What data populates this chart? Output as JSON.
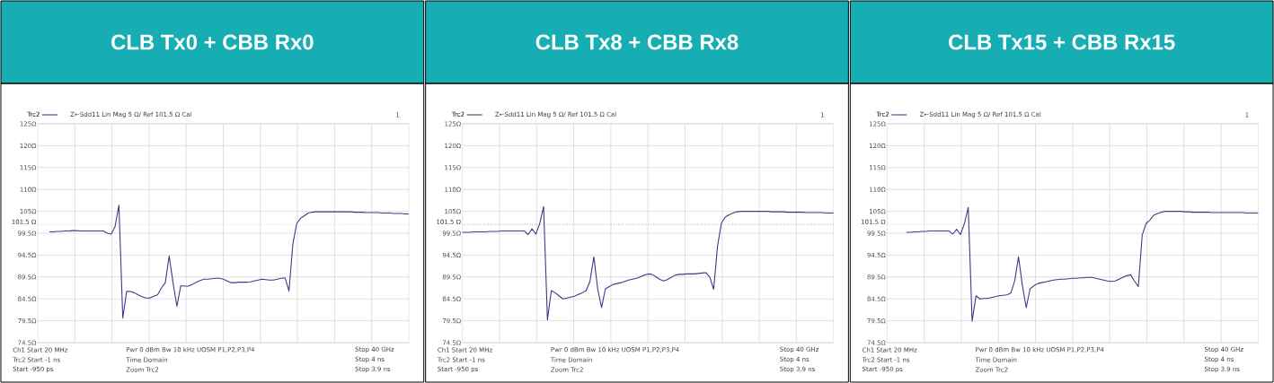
{
  "chart_data": [
    {
      "type": "line",
      "title": "CLB Tx0 + CBB Rx0",
      "categories": [
        null,
        null,
        null,
        null,
        null,
        null,
        null,
        null,
        null,
        null,
        null,
        null,
        null,
        null,
        null,
        null,
        null,
        null,
        null,
        null,
        null,
        null,
        null,
        null,
        null,
        null,
        null,
        null,
        null,
        null,
        null,
        null,
        null,
        null,
        null,
        null,
        null,
        null,
        null,
        null,
        null,
        null,
        null,
        null,
        null,
        null,
        null,
        null,
        null,
        null,
        null,
        null,
        null,
        null,
        null,
        null,
        null,
        null,
        null,
        null,
        null,
        null,
        null,
        null,
        null,
        null,
        null,
        null,
        null,
        null,
        null,
        null,
        null,
        null,
        null,
        null,
        null,
        null,
        null,
        null,
        null,
        null,
        null,
        null,
        null,
        null,
        null,
        null,
        null,
        null,
        null,
        null,
        null,
        null,
        null,
        null,
        null
      ],
      "series": [
        {
          "name": "Trc2",
          "color": "#3b3b8a",
          "values": [
            null,
            null,
            null,
            99.8,
            99.8,
            99.9,
            99.9,
            100.0,
            100.0,
            100.1,
            100.1,
            100.0,
            100.0,
            100.0,
            100.0,
            100.0,
            100.0,
            100.0,
            99.5,
            99.3,
            101.0,
            105.9,
            80.1,
            86.2,
            86.2,
            85.9,
            85.4,
            85.0,
            84.7,
            84.7,
            85.1,
            85.4,
            87.0,
            88.2,
            94.3,
            88.2,
            82.8,
            87.5,
            87.4,
            87.4,
            87.8,
            88.3,
            88.7,
            89.0,
            89.0,
            89.1,
            89.2,
            89.2,
            89.0,
            88.6,
            88.2,
            88.2,
            88.3,
            88.3,
            88.3,
            88.4,
            88.6,
            88.8,
            89.0,
            88.9,
            88.8,
            88.8,
            89.0,
            89.2,
            89.3,
            86.3,
            97.0,
            101.7,
            102.9,
            103.5,
            104.1,
            104.3,
            104.4,
            104.4,
            104.4,
            104.4,
            104.4,
            104.4,
            104.4,
            104.4,
            104.4,
            104.4,
            104.3,
            104.3,
            104.3,
            104.2,
            104.2,
            104.2,
            104.2,
            104.1,
            104.1,
            104.1,
            104.0,
            104.0,
            104.0,
            103.9,
            103.9
          ]
        }
      ],
      "ylim": [
        74.5,
        124.5
      ],
      "yticks": [
        {
          "value": 74.5,
          "label": "74.5Ω"
        },
        {
          "value": 79.5,
          "label": "79.5Ω"
        },
        {
          "value": 84.5,
          "label": "84.5Ω"
        },
        {
          "value": 89.5,
          "label": "89.5Ω"
        },
        {
          "value": 94.5,
          "label": "94.5Ω"
        },
        {
          "value": 99.5,
          "label": "99.5Ω"
        },
        {
          "value": 104.5,
          "label": "105Ω"
        },
        {
          "value": 109.5,
          "label": "110Ω"
        },
        {
          "value": 114.5,
          "label": "115Ω"
        },
        {
          "value": 119.5,
          "label": "120Ω"
        },
        {
          "value": 124.5,
          "label": "125Ω"
        }
      ],
      "tick_labels": "y",
      "grid": true,
      "legend": "top left",
      "line_style": "solid",
      "ref_lines": [
        {
          "axis": "y",
          "value": 101.5,
          "label": "101.5 Ω",
          "color": "#b0b0b0",
          "line_style": "dotted"
        }
      ],
      "annotations": [
        "Z←Sdd11 Lin Mag 5 Ω/ Ref 101.5 Ω Cal",
        "1",
        "Ch1 Start 20 MHz",
        "Pwr 0 dBm Bw 10 kHz UOSM P1,P2,P3,P4",
        "Stop 40 GHz",
        "Trc2 Start -1 ns",
        "Time Domain",
        "Stop 4 ns",
        "Start -950 ps",
        "Zoom Trc2",
        "Stop 3.9 ns"
      ]
    },
    {
      "type": "line",
      "title": "CLB Tx8 + CBB Rx8",
      "categories": [
        null,
        null,
        null,
        null,
        null,
        null,
        null,
        null,
        null,
        null,
        null,
        null,
        null,
        null,
        null,
        null,
        null,
        null,
        null,
        null,
        null,
        null,
        null,
        null,
        null,
        null,
        null,
        null,
        null,
        null,
        null,
        null,
        null,
        null,
        null,
        null,
        null,
        null,
        null,
        null,
        null,
        null,
        null,
        null,
        null,
        null,
        null,
        null,
        null,
        null,
        null,
        null,
        null,
        null,
        null,
        null,
        null,
        null,
        null,
        null,
        null,
        null,
        null,
        null,
        null,
        null,
        null,
        null,
        null,
        null,
        null,
        null,
        null,
        null,
        null,
        null,
        null,
        null,
        null,
        null,
        null,
        null,
        null,
        null,
        null,
        null,
        null,
        null,
        null,
        null,
        null,
        null,
        null,
        null,
        null,
        null,
        null
      ],
      "series": [
        {
          "name": "Trc2",
          "color": "#3b3b8a",
          "values": [
            99.7,
            99.7,
            99.7,
            99.8,
            99.8,
            99.8,
            99.8,
            99.9,
            99.9,
            99.9,
            100.0,
            100.0,
            100.0,
            100.0,
            100.0,
            100.0,
            100.0,
            99.2,
            100.5,
            99.3,
            101.7,
            105.6,
            79.7,
            86.4,
            85.9,
            85.2,
            84.5,
            84.7,
            84.9,
            85.1,
            85.5,
            85.9,
            86.4,
            88.5,
            94.1,
            86.8,
            82.5,
            86.8,
            87.3,
            87.8,
            88.0,
            88.2,
            88.5,
            88.8,
            89.0,
            89.2,
            89.5,
            89.9,
            90.2,
            90.1,
            89.6,
            89.0,
            88.6,
            88.9,
            89.4,
            89.9,
            90.1,
            90.1,
            90.2,
            90.2,
            90.2,
            90.3,
            90.4,
            90.5,
            89.5,
            86.7,
            96.5,
            101.8,
            103.2,
            103.7,
            104.1,
            104.4,
            104.5,
            104.5,
            104.5,
            104.5,
            104.5,
            104.5,
            104.5,
            104.5,
            104.4,
            104.4,
            104.4,
            104.4,
            104.3,
            104.3,
            104.3,
            104.3,
            104.3,
            104.2,
            104.2,
            104.2,
            104.2,
            104.2,
            104.1,
            104.1,
            104.1
          ]
        }
      ],
      "ylim": [
        74.5,
        124.5
      ],
      "yticks": [
        {
          "value": 74.5,
          "label": "74.5Ω"
        },
        {
          "value": 79.5,
          "label": "79.5Ω"
        },
        {
          "value": 84.5,
          "label": "84.5Ω"
        },
        {
          "value": 89.5,
          "label": "89.5Ω"
        },
        {
          "value": 94.5,
          "label": "94.5Ω"
        },
        {
          "value": 99.5,
          "label": "99.5Ω"
        },
        {
          "value": 104.5,
          "label": "105Ω"
        },
        {
          "value": 109.5,
          "label": "110Ω"
        },
        {
          "value": 114.5,
          "label": "115Ω"
        },
        {
          "value": 119.5,
          "label": "120Ω"
        },
        {
          "value": 124.5,
          "label": "125Ω"
        }
      ],
      "tick_labels": "y",
      "grid": true,
      "legend": "top left",
      "line_style": "solid",
      "ref_lines": [
        {
          "axis": "y",
          "value": 101.5,
          "label": "101.5 Ω",
          "color": "#303030",
          "line_style": "dotted"
        }
      ],
      "annotations": [
        "Z←Sdd11 Lin Mag 5 Ω/ Ref 101.5 Ω Cal",
        "1",
        "Ch1 Start 20 MHz",
        "Pwr 0 dBm Bw 10 kHz UOSM P1,P2,P3,P4",
        "Stop 40 GHz",
        "Trc2 Start -1 ns",
        "Time Domain",
        "Stop 4 ns",
        "Start -950 ps",
        "Zoom Trc2",
        "Stop 3.9 ns"
      ]
    },
    {
      "type": "line",
      "title": "CLB Tx15 + CBB Rx15",
      "categories": [
        null,
        null,
        null,
        null,
        null,
        null,
        null,
        null,
        null,
        null,
        null,
        null,
        null,
        null,
        null,
        null,
        null,
        null,
        null,
        null,
        null,
        null,
        null,
        null,
        null,
        null,
        null,
        null,
        null,
        null,
        null,
        null,
        null,
        null,
        null,
        null,
        null,
        null,
        null,
        null,
        null,
        null,
        null,
        null,
        null,
        null,
        null,
        null,
        null,
        null,
        null,
        null,
        null,
        null,
        null,
        null,
        null,
        null,
        null,
        null,
        null,
        null,
        null,
        null,
        null,
        null,
        null,
        null,
        null,
        null,
        null,
        null,
        null,
        null,
        null,
        null,
        null,
        null,
        null,
        null,
        null,
        null,
        null,
        null,
        null,
        null,
        null,
        null,
        null,
        null,
        null,
        null,
        null,
        null,
        null,
        null,
        null
      ],
      "series": [
        {
          "name": "Trc2",
          "color": "#3b3b8a",
          "values": [
            null,
            null,
            null,
            null,
            null,
            99.7,
            99.7,
            99.8,
            99.8,
            99.9,
            99.9,
            100.0,
            100.0,
            100.0,
            100.0,
            100.0,
            100.0,
            99.3,
            100.4,
            99.2,
            101.7,
            105.4,
            79.4,
            85.2,
            84.5,
            84.6,
            84.6,
            84.8,
            85.0,
            85.2,
            85.3,
            85.4,
            85.8,
            88.5,
            94.1,
            87.6,
            82.5,
            86.8,
            87.5,
            88.0,
            88.2,
            88.4,
            88.6,
            88.8,
            88.9,
            89.0,
            89.0,
            89.1,
            89.2,
            89.2,
            89.3,
            89.3,
            89.4,
            89.4,
            89.2,
            89.0,
            88.8,
            88.6,
            88.5,
            88.6,
            89.0,
            89.4,
            89.8,
            90.0,
            88.6,
            87.3,
            99.0,
            101.7,
            102.5,
            103.6,
            104.0,
            104.3,
            104.5,
            104.5,
            104.5,
            104.5,
            104.5,
            104.4,
            104.4,
            104.3,
            104.3,
            104.3,
            104.3,
            104.3,
            104.2,
            104.2,
            104.2,
            104.2,
            104.2,
            104.2,
            104.2,
            104.2,
            104.2,
            104.1,
            104.1,
            104.1,
            104.1
          ]
        }
      ],
      "ylim": [
        74.5,
        124.5
      ],
      "yticks": [
        {
          "value": 74.5,
          "label": "74.5Ω"
        },
        {
          "value": 79.5,
          "label": "79.5Ω"
        },
        {
          "value": 84.5,
          "label": "84.5Ω"
        },
        {
          "value": 89.5,
          "label": "89.5Ω"
        },
        {
          "value": 94.5,
          "label": "94.5Ω"
        },
        {
          "value": 99.5,
          "label": "99.5Ω"
        },
        {
          "value": 104.5,
          "label": "105Ω"
        },
        {
          "value": 109.5,
          "label": "110Ω"
        },
        {
          "value": 114.5,
          "label": "115Ω"
        },
        {
          "value": 119.5,
          "label": "120Ω"
        },
        {
          "value": 124.5,
          "label": "125Ω"
        }
      ],
      "tick_labels": "y",
      "grid": true,
      "legend": "top left",
      "line_style": "solid",
      "ref_lines": [
        {
          "axis": "y",
          "value": 101.5,
          "label": "101.5 Ω",
          "color": "#9a9a9a",
          "line_style": "dotted"
        }
      ],
      "annotations": [
        "Z←Sdd11 Lin Mag 5 Ω/ Ref 101.5 Ω Cal",
        "1",
        "Ch1 Start 20 MHz",
        "Pwr 0 dBm Bw 10 kHz UOSM P1,P2,P3,P4",
        "Stop 40 GHz",
        "Trc2 Start -1 ns",
        "Time Domain",
        "Stop 4 ns",
        "Start -950 ps",
        "Zoom Trc2",
        "Stop 3.9 ns"
      ]
    }
  ]
}
